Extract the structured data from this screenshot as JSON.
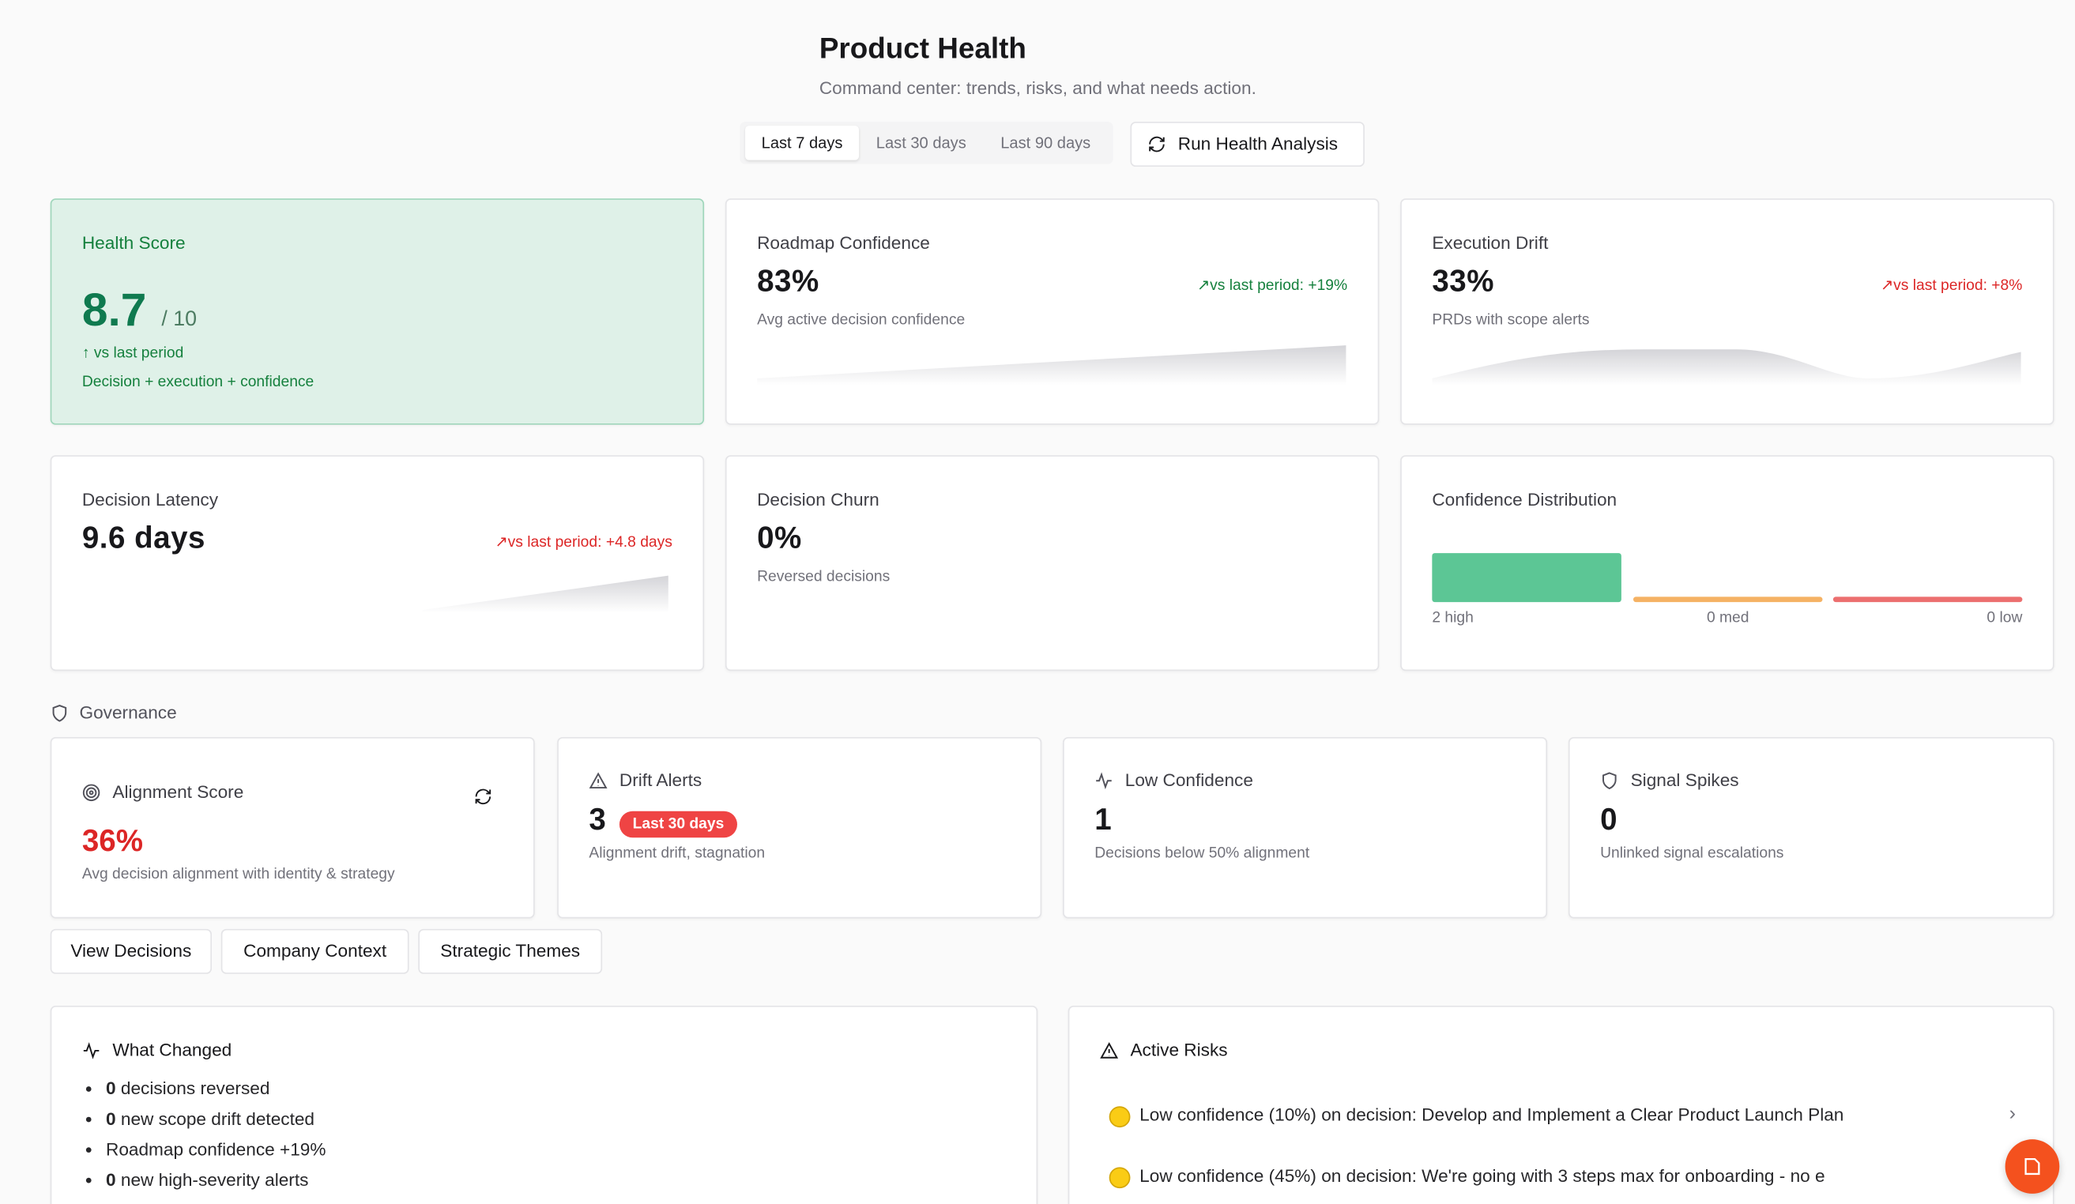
{
  "header": {
    "title": "Product Health",
    "subtitle": "Command center: trends, risks, and what needs action."
  },
  "period_tabs": [
    "Last 7 days",
    "Last 30 days",
    "Last 90 days"
  ],
  "run_button": "Run Health Analysis",
  "metrics": [
    {
      "label": "Health Score",
      "value": "8.7",
      "suffix": "/ 10",
      "trend": "vs last period",
      "note": "Decision + execution + confidence"
    },
    {
      "label": "Roadmap Confidence",
      "value": "83%",
      "trend": "vs last period: +19%",
      "note": "Avg active decision confidence"
    },
    {
      "label": "Execution Drift",
      "value": "33%",
      "trend": "vs last period: +8%",
      "note": "PRDs with scope alerts"
    },
    {
      "label": "Decision Latency",
      "value": "9.6 days",
      "trend": "vs last period: +4.8 days"
    },
    {
      "label": "Decision Churn",
      "value": "0%",
      "note": "Reversed decisions"
    }
  ],
  "distribution": {
    "label": "Confidence Distribution",
    "buckets": [
      "2 high",
      "0 med",
      "0 low"
    ]
  },
  "governance": {
    "title": "Governance",
    "cards": [
      {
        "label": "Alignment Score",
        "value": "36%",
        "note": "Avg decision alignment with identity & strategy"
      },
      {
        "label": "Drift Alerts",
        "value": "3",
        "badge": "Last 30 days",
        "note": "Alignment drift, stagnation"
      },
      {
        "label": "Low Confidence",
        "value": "1",
        "note": "Decisions below 50% alignment"
      },
      {
        "label": "Signal Spikes",
        "value": "0",
        "note": "Unlinked signal escalations"
      }
    ]
  },
  "buttons": [
    "View Decisions",
    "Company Context",
    "Strategic Themes"
  ],
  "what_changed": {
    "title": "What Changed",
    "items": [
      {
        "bold": "0",
        "text": "decisions reversed"
      },
      {
        "bold": "0",
        "text": "new scope drift detected"
      },
      {
        "text": "Roadmap confidence +19%"
      },
      {
        "bold": "0",
        "text": "new high-severity alerts"
      }
    ]
  },
  "active_risks": {
    "title": "Active Risks",
    "items": [
      "Low confidence (10%) on decision: Develop and Implement a Clear Product Launch Plan",
      "Low confidence (45%) on decision: We're going with 3 steps max for onboarding - no e"
    ]
  }
}
